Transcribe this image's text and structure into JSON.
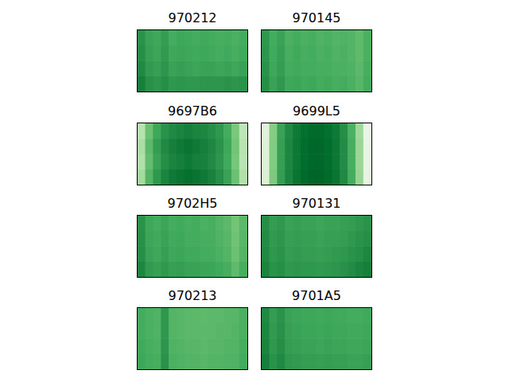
{
  "chart_data": [
    {
      "type": "heatmap",
      "title": "970212",
      "color": "Greens",
      "tick_labels": false,
      "cells": [
        [
          0.72,
          0.66,
          0.64,
          0.68,
          0.62,
          0.64,
          0.63,
          0.62,
          0.63,
          0.62,
          0.61,
          0.62,
          0.6,
          0.62
        ],
        [
          0.74,
          0.67,
          0.65,
          0.69,
          0.64,
          0.65,
          0.64,
          0.63,
          0.64,
          0.63,
          0.62,
          0.63,
          0.61,
          0.63
        ],
        [
          0.76,
          0.69,
          0.67,
          0.71,
          0.66,
          0.67,
          0.66,
          0.65,
          0.66,
          0.66,
          0.65,
          0.66,
          0.64,
          0.66
        ],
        [
          0.8,
          0.73,
          0.71,
          0.74,
          0.7,
          0.71,
          0.7,
          0.7,
          0.71,
          0.71,
          0.71,
          0.72,
          0.71,
          0.72
        ]
      ]
    },
    {
      "type": "heatmap",
      "title": "970145",
      "color": "Greens",
      "tick_labels": false,
      "cells": [
        [
          0.7,
          0.62,
          0.66,
          0.6,
          0.62,
          0.6,
          0.61,
          0.59,
          0.6,
          0.58,
          0.59,
          0.58,
          0.55,
          0.6
        ],
        [
          0.71,
          0.63,
          0.67,
          0.61,
          0.63,
          0.61,
          0.62,
          0.6,
          0.61,
          0.59,
          0.6,
          0.58,
          0.55,
          0.6
        ],
        [
          0.72,
          0.64,
          0.68,
          0.62,
          0.63,
          0.62,
          0.62,
          0.61,
          0.61,
          0.6,
          0.6,
          0.59,
          0.56,
          0.61
        ],
        [
          0.74,
          0.66,
          0.7,
          0.64,
          0.65,
          0.63,
          0.64,
          0.62,
          0.63,
          0.61,
          0.62,
          0.6,
          0.57,
          0.62
        ]
      ]
    },
    {
      "type": "heatmap",
      "title": "9697B6",
      "color": "Greens",
      "tick_labels": false,
      "cells": [
        [
          0.3,
          0.52,
          0.64,
          0.72,
          0.76,
          0.78,
          0.8,
          0.78,
          0.77,
          0.74,
          0.7,
          0.62,
          0.48,
          0.28
        ],
        [
          0.34,
          0.56,
          0.68,
          0.76,
          0.8,
          0.82,
          0.84,
          0.82,
          0.8,
          0.77,
          0.72,
          0.64,
          0.5,
          0.3
        ],
        [
          0.32,
          0.54,
          0.66,
          0.74,
          0.78,
          0.8,
          0.82,
          0.8,
          0.79,
          0.76,
          0.71,
          0.63,
          0.49,
          0.29
        ],
        [
          0.36,
          0.58,
          0.7,
          0.78,
          0.82,
          0.84,
          0.86,
          0.84,
          0.82,
          0.79,
          0.74,
          0.66,
          0.52,
          0.32
        ]
      ]
    },
    {
      "type": "heatmap",
      "title": "9699L5",
      "color": "Greens",
      "tick_labels": false,
      "cells": [
        [
          0.15,
          0.45,
          0.66,
          0.76,
          0.82,
          0.86,
          0.88,
          0.88,
          0.86,
          0.82,
          0.74,
          0.6,
          0.38,
          0.1
        ],
        [
          0.16,
          0.46,
          0.67,
          0.77,
          0.83,
          0.87,
          0.89,
          0.89,
          0.87,
          0.83,
          0.75,
          0.61,
          0.39,
          0.11
        ],
        [
          0.16,
          0.46,
          0.67,
          0.77,
          0.83,
          0.87,
          0.89,
          0.89,
          0.87,
          0.83,
          0.75,
          0.61,
          0.39,
          0.11
        ],
        [
          0.17,
          0.47,
          0.68,
          0.78,
          0.84,
          0.88,
          0.9,
          0.9,
          0.88,
          0.84,
          0.76,
          0.62,
          0.4,
          0.12
        ]
      ]
    },
    {
      "type": "heatmap",
      "title": "9702H5",
      "color": "Greens",
      "tick_labels": false,
      "cells": [
        [
          0.72,
          0.64,
          0.62,
          0.65,
          0.62,
          0.63,
          0.61,
          0.62,
          0.6,
          0.61,
          0.58,
          0.56,
          0.5,
          0.56
        ],
        [
          0.73,
          0.65,
          0.63,
          0.66,
          0.63,
          0.64,
          0.62,
          0.62,
          0.61,
          0.61,
          0.59,
          0.57,
          0.51,
          0.57
        ],
        [
          0.74,
          0.66,
          0.64,
          0.67,
          0.64,
          0.65,
          0.63,
          0.63,
          0.62,
          0.62,
          0.6,
          0.58,
          0.52,
          0.58
        ],
        [
          0.77,
          0.69,
          0.67,
          0.7,
          0.67,
          0.68,
          0.66,
          0.66,
          0.65,
          0.65,
          0.63,
          0.61,
          0.55,
          0.61
        ]
      ]
    },
    {
      "type": "heatmap",
      "title": "970131",
      "color": "Greens",
      "tick_labels": false,
      "cells": [
        [
          0.74,
          0.68,
          0.7,
          0.66,
          0.67,
          0.66,
          0.66,
          0.65,
          0.66,
          0.66,
          0.67,
          0.68,
          0.7,
          0.72
        ],
        [
          0.75,
          0.69,
          0.71,
          0.67,
          0.68,
          0.67,
          0.67,
          0.66,
          0.67,
          0.67,
          0.68,
          0.7,
          0.72,
          0.74
        ],
        [
          0.76,
          0.7,
          0.72,
          0.68,
          0.69,
          0.68,
          0.68,
          0.67,
          0.68,
          0.69,
          0.7,
          0.72,
          0.74,
          0.77
        ],
        [
          0.78,
          0.72,
          0.74,
          0.7,
          0.71,
          0.7,
          0.7,
          0.69,
          0.7,
          0.71,
          0.73,
          0.75,
          0.78,
          0.8
        ]
      ]
    },
    {
      "type": "heatmap",
      "title": "970213",
      "color": "Greens",
      "tick_labels": false,
      "cells": [
        [
          0.62,
          0.6,
          0.59,
          0.7,
          0.58,
          0.57,
          0.56,
          0.56,
          0.55,
          0.56,
          0.56,
          0.57,
          0.57,
          0.6
        ],
        [
          0.62,
          0.6,
          0.59,
          0.7,
          0.58,
          0.57,
          0.56,
          0.56,
          0.56,
          0.56,
          0.57,
          0.57,
          0.58,
          0.6
        ],
        [
          0.63,
          0.61,
          0.6,
          0.71,
          0.59,
          0.58,
          0.57,
          0.57,
          0.56,
          0.57,
          0.57,
          0.58,
          0.58,
          0.61
        ],
        [
          0.64,
          0.62,
          0.61,
          0.72,
          0.6,
          0.59,
          0.58,
          0.58,
          0.57,
          0.58,
          0.58,
          0.59,
          0.59,
          0.62
        ]
      ]
    },
    {
      "type": "heatmap",
      "title": "9701A5",
      "color": "Greens",
      "tick_labels": false,
      "cells": [
        [
          0.76,
          0.68,
          0.72,
          0.66,
          0.65,
          0.64,
          0.64,
          0.63,
          0.64,
          0.63,
          0.63,
          0.62,
          0.62,
          0.63
        ],
        [
          0.77,
          0.69,
          0.73,
          0.67,
          0.66,
          0.65,
          0.65,
          0.64,
          0.65,
          0.64,
          0.64,
          0.63,
          0.63,
          0.64
        ],
        [
          0.78,
          0.7,
          0.74,
          0.68,
          0.67,
          0.66,
          0.66,
          0.65,
          0.66,
          0.65,
          0.65,
          0.64,
          0.64,
          0.65
        ],
        [
          0.8,
          0.72,
          0.76,
          0.7,
          0.69,
          0.68,
          0.68,
          0.67,
          0.68,
          0.67,
          0.67,
          0.66,
          0.66,
          0.67
        ]
      ]
    }
  ]
}
